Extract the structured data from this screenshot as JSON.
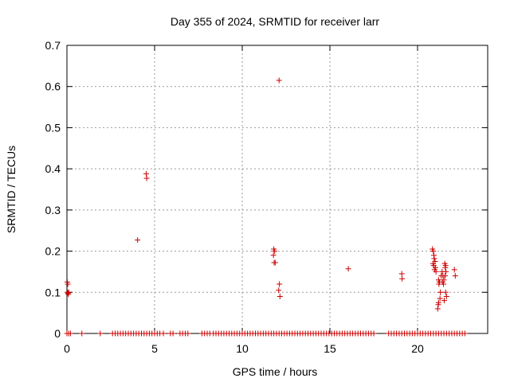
{
  "chart_data": {
    "type": "scatter",
    "title": "Day 355 of 2024, SRMTID for receiver larr",
    "xlabel": "GPS time / hours",
    "ylabel": "SRMTID / TECUs",
    "xlim": [
      0,
      24
    ],
    "ylim": [
      0,
      0.7
    ],
    "x_ticks": [
      0,
      5,
      10,
      15,
      20
    ],
    "x_tick_labels": [
      "0",
      "5",
      "10",
      "15",
      "20"
    ],
    "y_ticks": [
      0,
      0.1,
      0.2,
      0.3,
      0.4,
      0.5,
      0.6,
      0.7
    ],
    "y_tick_labels": [
      "0",
      "0.1",
      "0.2",
      "0.3",
      "0.4",
      "0.5",
      "0.6",
      "0.7"
    ],
    "grid": true,
    "marker": "+",
    "marker_color": "#cc0000",
    "series": [
      {
        "points": [
          [
            0.02,
            0.125
          ],
          [
            0.05,
            0.12
          ],
          [
            0.03,
            0.1
          ],
          [
            0.06,
            0.098
          ],
          [
            0.08,
            0.095
          ],
          [
            0.1,
            0.1
          ],
          [
            4.03,
            0.227
          ],
          [
            4.52,
            0.388
          ],
          [
            4.55,
            0.377
          ],
          [
            11.8,
            0.205
          ],
          [
            11.85,
            0.2
          ],
          [
            11.78,
            0.19
          ],
          [
            11.82,
            0.172
          ],
          [
            11.88,
            0.172
          ],
          [
            12.1,
            0.615
          ],
          [
            12.12,
            0.12
          ],
          [
            12.08,
            0.105
          ],
          [
            12.15,
            0.09
          ],
          [
            16.05,
            0.157
          ],
          [
            19.1,
            0.145
          ],
          [
            19.12,
            0.133
          ],
          [
            20.85,
            0.205
          ],
          [
            20.9,
            0.2
          ],
          [
            20.93,
            0.19
          ],
          [
            20.95,
            0.182
          ],
          [
            21.0,
            0.175
          ],
          [
            20.88,
            0.17
          ],
          [
            20.92,
            0.165
          ],
          [
            21.02,
            0.16
          ],
          [
            20.97,
            0.155
          ],
          [
            21.05,
            0.15
          ],
          [
            21.2,
            0.13
          ],
          [
            21.25,
            0.125
          ],
          [
            21.22,
            0.12
          ],
          [
            21.3,
            0.1
          ],
          [
            21.28,
            0.085
          ],
          [
            21.2,
            0.075
          ],
          [
            21.18,
            0.07
          ],
          [
            21.15,
            0.06
          ],
          [
            21.4,
            0.15
          ],
          [
            21.45,
            0.14
          ],
          [
            21.5,
            0.13
          ],
          [
            21.42,
            0.125
          ],
          [
            21.48,
            0.12
          ],
          [
            21.35,
            0.14
          ],
          [
            21.55,
            0.17
          ],
          [
            21.6,
            0.165
          ],
          [
            21.58,
            0.16
          ],
          [
            21.62,
            0.15
          ],
          [
            21.57,
            0.14
          ],
          [
            21.6,
            0.1
          ],
          [
            21.65,
            0.09
          ],
          [
            21.52,
            0.08
          ],
          [
            22.1,
            0.155
          ],
          [
            22.15,
            0.14
          ],
          [
            0.0,
            0
          ],
          [
            0.1,
            0
          ],
          [
            0.2,
            0
          ],
          [
            0.85,
            0
          ],
          [
            1.9,
            0
          ],
          [
            2.6,
            0
          ],
          [
            2.75,
            0
          ],
          [
            2.9,
            0
          ],
          [
            3.05,
            0
          ],
          [
            3.2,
            0
          ],
          [
            3.35,
            0
          ],
          [
            3.5,
            0
          ],
          [
            3.65,
            0
          ],
          [
            3.8,
            0
          ],
          [
            3.95,
            0
          ],
          [
            4.1,
            0
          ],
          [
            4.25,
            0
          ],
          [
            4.4,
            0
          ],
          [
            4.55,
            0
          ],
          [
            4.7,
            0
          ],
          [
            4.85,
            0
          ],
          [
            5.0,
            0
          ],
          [
            5.15,
            0
          ],
          [
            5.3,
            0
          ],
          [
            5.5,
            0
          ],
          [
            5.9,
            0
          ],
          [
            6.05,
            0
          ],
          [
            6.45,
            0
          ],
          [
            6.6,
            0
          ],
          [
            6.75,
            0
          ],
          [
            6.9,
            0
          ],
          [
            7.7,
            0
          ],
          [
            7.85,
            0
          ],
          [
            8.0,
            0
          ],
          [
            8.15,
            0
          ],
          [
            8.35,
            0
          ],
          [
            8.5,
            0
          ],
          [
            8.65,
            0
          ],
          [
            8.8,
            0
          ],
          [
            8.95,
            0
          ],
          [
            9.1,
            0
          ],
          [
            9.25,
            0
          ],
          [
            9.4,
            0
          ],
          [
            9.55,
            0
          ],
          [
            9.7,
            0
          ],
          [
            9.85,
            0
          ],
          [
            10.0,
            0
          ],
          [
            10.15,
            0
          ],
          [
            10.3,
            0
          ],
          [
            10.45,
            0
          ],
          [
            10.6,
            0
          ],
          [
            10.75,
            0
          ],
          [
            10.9,
            0
          ],
          [
            11.05,
            0
          ],
          [
            11.2,
            0
          ],
          [
            11.35,
            0
          ],
          [
            11.5,
            0
          ],
          [
            11.65,
            0
          ],
          [
            11.8,
            0
          ],
          [
            11.95,
            0
          ],
          [
            12.1,
            0
          ],
          [
            12.25,
            0
          ],
          [
            12.4,
            0
          ],
          [
            12.55,
            0
          ],
          [
            12.7,
            0
          ],
          [
            12.85,
            0
          ],
          [
            13.0,
            0
          ],
          [
            13.15,
            0
          ],
          [
            13.3,
            0
          ],
          [
            13.45,
            0
          ],
          [
            13.6,
            0
          ],
          [
            13.75,
            0
          ],
          [
            13.9,
            0
          ],
          [
            14.05,
            0
          ],
          [
            14.2,
            0
          ],
          [
            14.35,
            0
          ],
          [
            14.5,
            0
          ],
          [
            14.65,
            0
          ],
          [
            14.8,
            0
          ],
          [
            14.95,
            0
          ],
          [
            15.1,
            0
          ],
          [
            15.25,
            0
          ],
          [
            15.4,
            0
          ],
          [
            15.55,
            0
          ],
          [
            15.7,
            0
          ],
          [
            15.85,
            0
          ],
          [
            16.0,
            0
          ],
          [
            16.15,
            0
          ],
          [
            16.3,
            0
          ],
          [
            16.45,
            0
          ],
          [
            16.6,
            0
          ],
          [
            16.75,
            0
          ],
          [
            16.9,
            0
          ],
          [
            17.05,
            0
          ],
          [
            17.2,
            0
          ],
          [
            17.35,
            0
          ],
          [
            17.5,
            0
          ],
          [
            18.35,
            0
          ],
          [
            18.5,
            0
          ],
          [
            18.65,
            0
          ],
          [
            18.8,
            0
          ],
          [
            18.95,
            0
          ],
          [
            19.1,
            0
          ],
          [
            19.25,
            0
          ],
          [
            19.4,
            0
          ],
          [
            19.55,
            0
          ],
          [
            19.7,
            0
          ],
          [
            19.85,
            0
          ],
          [
            20.0,
            0
          ],
          [
            20.15,
            0
          ],
          [
            20.3,
            0
          ],
          [
            20.45,
            0
          ],
          [
            20.6,
            0
          ],
          [
            20.75,
            0
          ],
          [
            20.9,
            0
          ],
          [
            21.05,
            0
          ],
          [
            21.2,
            0
          ],
          [
            21.35,
            0
          ],
          [
            21.5,
            0
          ],
          [
            21.65,
            0
          ],
          [
            21.8,
            0
          ],
          [
            21.95,
            0
          ],
          [
            22.1,
            0
          ],
          [
            22.25,
            0
          ],
          [
            22.4,
            0
          ],
          [
            22.55,
            0
          ],
          [
            22.7,
            0
          ]
        ]
      }
    ]
  }
}
